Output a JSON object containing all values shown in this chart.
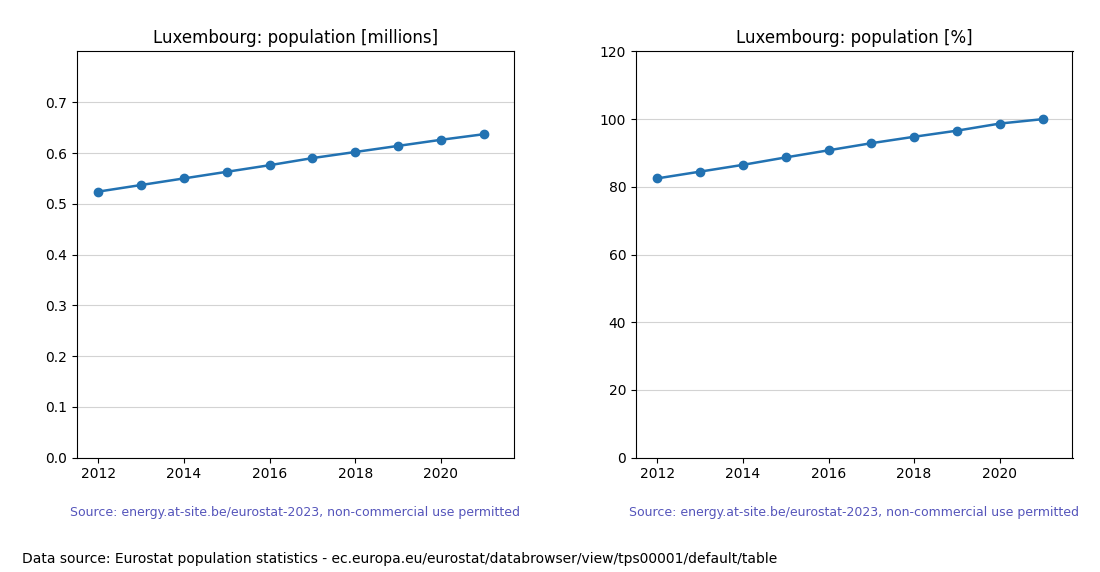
{
  "years": [
    2012,
    2013,
    2014,
    2015,
    2016,
    2017,
    2018,
    2019,
    2020,
    2021
  ],
  "population_millions": [
    0.524,
    0.537,
    0.55,
    0.563,
    0.576,
    0.59,
    0.602,
    0.614,
    0.626,
    0.637
  ],
  "population_pct": [
    82.5,
    84.5,
    86.5,
    88.7,
    90.8,
    92.9,
    94.8,
    96.6,
    98.7,
    100.0
  ],
  "title_millions": "Luxembourg: population [millions]",
  "title_pct": "Luxembourg: population [%]",
  "source_text": "Source: energy.at-site.be/eurostat-2023, non-commercial use permitted",
  "footer_text": "Data source: Eurostat population statistics - ec.europa.eu/eurostat/databrowser/view/tps00001/default/table",
  "line_color": "#2272b2",
  "source_color": "#5555bb",
  "ylim_millions": [
    0.0,
    0.8
  ],
  "yticks_millions": [
    0.0,
    0.1,
    0.2,
    0.3,
    0.4,
    0.5,
    0.6,
    0.7
  ],
  "ylim_pct": [
    0,
    120
  ],
  "yticks_pct": [
    0,
    20,
    40,
    60,
    80,
    100,
    120
  ],
  "xticks": [
    2012,
    2014,
    2016,
    2018,
    2020
  ],
  "marker": "o",
  "markersize": 6,
  "linewidth": 1.8,
  "title_fontsize": 12,
  "tick_fontsize": 10,
  "source_fontsize": 9,
  "footer_fontsize": 10
}
